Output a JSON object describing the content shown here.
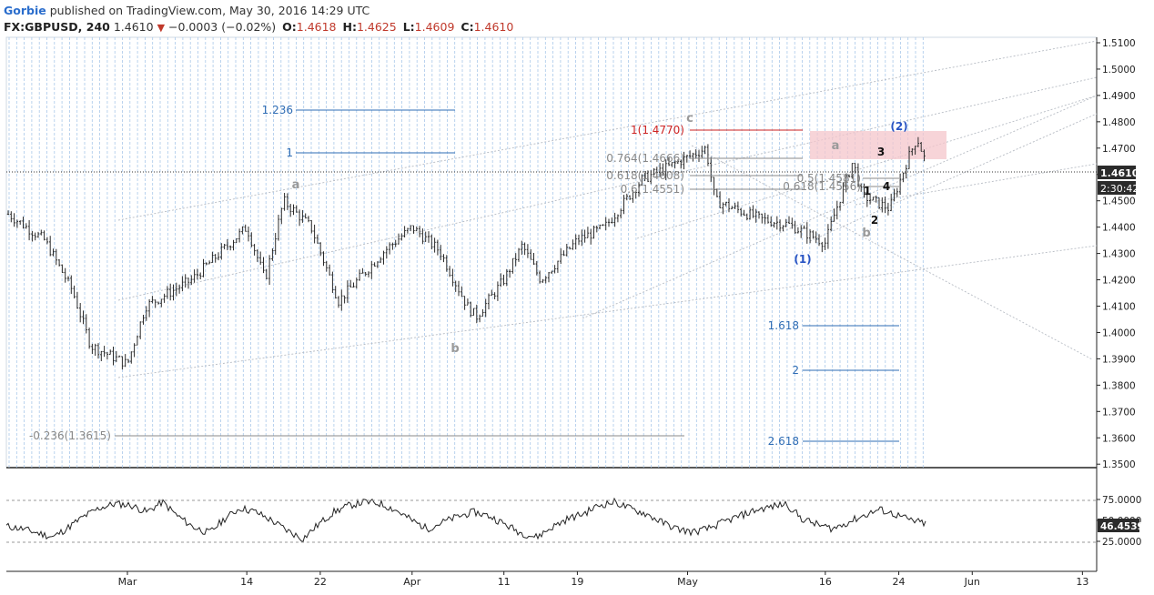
{
  "header": {
    "author": "Gorbie",
    "published": "published on TradingView.com, May 30, 2016 14:29 UTC",
    "symbol": "FX:GBPUSD, 240",
    "last": "1.4610",
    "arrow": "▼",
    "change": "−0.0003 (−0.02%)",
    "o_label": "O:",
    "o": "1.4618",
    "h_label": "H:",
    "h": "1.4625",
    "l_label": "L:",
    "l": "1.4609",
    "c_label": "C:",
    "c": "1.4610"
  },
  "colors": {
    "candle": "#2b2b2b",
    "fib_blue": "#2f6db5",
    "fib_red": "#cc2222",
    "fib_gray": "#888888",
    "wave_gray": "#9a9a9a",
    "wave_blue": "#2a55c4",
    "vertical_lines": "#a9c8ea",
    "zone": "#f4c6cb",
    "price_badge": "#2b2b2b"
  },
  "chart_data": [
    {
      "type": "candlestick",
      "symbol": "FX:GBPUSD",
      "interval": "240",
      "y_range": [
        1.35,
        1.51
      ],
      "y_ticks": [
        "1.5100",
        "1.5000",
        "1.4900",
        "1.4800",
        "1.4700",
        "1.4600",
        "1.4500",
        "1.4400",
        "1.4300",
        "1.4200",
        "1.4100",
        "1.4000",
        "1.3900",
        "1.3800",
        "1.3700",
        "1.3600",
        "1.3500"
      ],
      "x_ticks": [
        "Mar",
        "14",
        "22",
        "Apr",
        "11",
        "19",
        "May",
        "16",
        "24",
        "Jun",
        "13"
      ],
      "last_price_label": "1.4610",
      "countdown_label": "2:30:42",
      "grid": "vertical lines every bar",
      "fib_levels": [
        {
          "label": "1.236"
        },
        {
          "label": "1"
        },
        {
          "label": "1(1.4770)"
        },
        {
          "label": "0.764(1.4666)"
        },
        {
          "label": "0.618(1.4608)"
        },
        {
          "label": "0.6(1.4551)"
        },
        {
          "label": "0.5(1.4581)"
        },
        {
          "label": "0.618(1.4556)"
        },
        {
          "label": "-0.236(1.3615)"
        },
        {
          "label": "1.618"
        },
        {
          "label": "2"
        },
        {
          "label": "2.618"
        }
      ],
      "wave_labels": [
        "a",
        "b",
        "c",
        "a",
        "b",
        "(1)",
        "(2)",
        "1",
        "2",
        "3",
        "4"
      ],
      "approx_price_path": [
        {
          "x": "Feb 17",
          "y": 1.445
        },
        {
          "x": "Feb 21",
          "y": 1.435
        },
        {
          "x": "Feb 24",
          "y": 1.416
        },
        {
          "x": "Feb 26",
          "y": 1.395
        },
        {
          "x": "Mar 1",
          "y": 1.388
        },
        {
          "x": "Mar 3",
          "y": 1.41
        },
        {
          "x": "Mar 8",
          "y": 1.42
        },
        {
          "x": "Mar 11",
          "y": 1.43
        },
        {
          "x": "Mar 14",
          "y": 1.44
        },
        {
          "x": "Mar 16",
          "y": 1.42
        },
        {
          "x": "Mar 18",
          "y": 1.45
        },
        {
          "x": "Mar 21",
          "y": 1.44
        },
        {
          "x": "Mar 24",
          "y": 1.412
        },
        {
          "x": "Mar 29",
          "y": 1.431
        },
        {
          "x": "Apr 1",
          "y": 1.44
        },
        {
          "x": "Apr 4",
          "y": 1.431
        },
        {
          "x": "Apr 7",
          "y": 1.41
        },
        {
          "x": "Apr 8",
          "y": 1.406
        },
        {
          "x": "Apr 11",
          "y": 1.42
        },
        {
          "x": "Apr 13",
          "y": 1.433
        },
        {
          "x": "Apr 15",
          "y": 1.42
        },
        {
          "x": "Apr 19",
          "y": 1.435
        },
        {
          "x": "Apr 22",
          "y": 1.44
        },
        {
          "x": "Apr 26",
          "y": 1.458
        },
        {
          "x": "Apr 29",
          "y": 1.463
        },
        {
          "x": "May 3",
          "y": 1.47
        },
        {
          "x": "May 4",
          "y": 1.45
        },
        {
          "x": "May 9",
          "y": 1.443
        },
        {
          "x": "May 12",
          "y": 1.441
        },
        {
          "x": "May 16",
          "y": 1.434
        },
        {
          "x": "May 17",
          "y": 1.445
        },
        {
          "x": "May 19",
          "y": 1.465
        },
        {
          "x": "May 20",
          "y": 1.452
        },
        {
          "x": "May 23",
          "y": 1.447
        },
        {
          "x": "May 25",
          "y": 1.466
        },
        {
          "x": "May 26",
          "y": 1.474
        },
        {
          "x": "May 27",
          "y": 1.464
        },
        {
          "x": "May 30",
          "y": 1.461
        }
      ]
    },
    {
      "type": "line",
      "name": "",
      "y_ticks": [
        "75.0000",
        "50.0000",
        "25.0000"
      ],
      "last_value_label": "46.4539",
      "approx_values": [
        43,
        40,
        35,
        30,
        42,
        55,
        65,
        70,
        68,
        60,
        72,
        55,
        42,
        35,
        52,
        65,
        60,
        50,
        38,
        28,
        45,
        60,
        68,
        72,
        70,
        62,
        50,
        40,
        48,
        55,
        60,
        55,
        45,
        35,
        30,
        42,
        52,
        58,
        68,
        72,
        64,
        58,
        48,
        40,
        36,
        40,
        48,
        55,
        62,
        66,
        70,
        52,
        45,
        40,
        48,
        56,
        63,
        57,
        50,
        46
      ]
    }
  ]
}
